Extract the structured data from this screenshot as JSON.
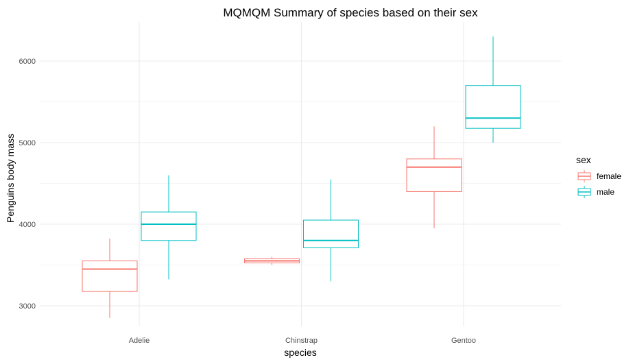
{
  "chart_data": {
    "type": "boxplot",
    "title": "MQMQM Summary of species based on their sex",
    "xlabel": "species",
    "ylabel": "Penguins body mass",
    "categories": [
      "Adelie",
      "Chinstrap",
      "Gentoo"
    ],
    "yticks": [
      3000,
      4000,
      5000,
      6000
    ],
    "ylim": [
      2780,
      6470
    ],
    "grid": true,
    "legend": {
      "title": "sex",
      "position": "right"
    },
    "series": [
      {
        "name": "female",
        "color": "#F8766D",
        "boxes": [
          {
            "min": 2850,
            "q1": 3175,
            "median": 3450,
            "q3": 3550,
            "max": 3825
          },
          {
            "min": 3500,
            "q1": 3525,
            "median": 3550,
            "q3": 3575,
            "max": 3600
          },
          {
            "min": 3950,
            "q1": 4400,
            "median": 4700,
            "q3": 4800,
            "max": 5200
          }
        ]
      },
      {
        "name": "male",
        "color": "#00BFC4",
        "boxes": [
          {
            "min": 3325,
            "q1": 3800,
            "median": 4000,
            "q3": 4150,
            "max": 4600
          },
          {
            "min": 3300,
            "q1": 3710,
            "median": 3800,
            "q3": 4050,
            "max": 4550
          },
          {
            "min": 5000,
            "q1": 5175,
            "median": 5300,
            "q3": 5700,
            "max": 6300
          }
        ]
      }
    ]
  }
}
